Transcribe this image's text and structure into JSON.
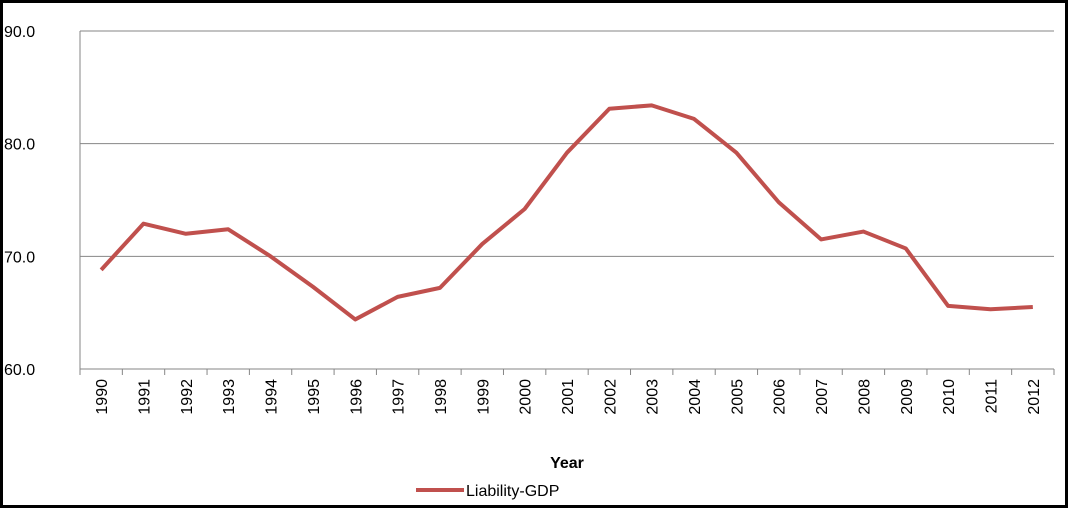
{
  "chart_data": {
    "type": "line",
    "categories": [
      "1990",
      "1991",
      "1992",
      "1993",
      "1994",
      "1995",
      "1996",
      "1997",
      "1998",
      "1999",
      "2000",
      "2001",
      "2002",
      "2003",
      "2004",
      "2005",
      "2006",
      "2007",
      "2008",
      "2009",
      "2010",
      "2011",
      "2012"
    ],
    "series": [
      {
        "name": "Liability-GDP",
        "color": "#c0504d",
        "values": [
          68.8,
          72.9,
          72.0,
          72.4,
          70.0,
          67.3,
          64.4,
          66.4,
          67.2,
          71.1,
          74.2,
          79.2,
          83.1,
          83.4,
          82.2,
          79.2,
          74.8,
          71.5,
          72.2,
          70.7,
          65.6,
          65.3,
          65.5
        ]
      }
    ],
    "x_label": "Year",
    "ylim": [
      60,
      90
    ],
    "yticks": [
      {
        "value": 60,
        "label": "60.0"
      },
      {
        "value": 70,
        "label": "70.0"
      },
      {
        "value": 80,
        "label": "80.0"
      },
      {
        "value": 90,
        "label": "90.0"
      }
    ],
    "grid": true,
    "legend": "bottom"
  }
}
